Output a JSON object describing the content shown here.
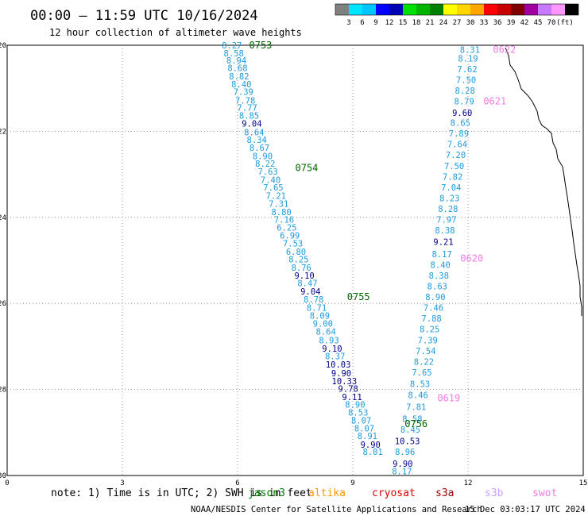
{
  "header": {
    "title": "00:00 – 11:59 UTC 10/16/2024",
    "subtitle": "12 hour collection of altimeter wave heights"
  },
  "colorbar": {
    "colors": [
      "#808080",
      "#00e5ff",
      "#00c8ff",
      "#0000ff",
      "#0000b4",
      "#00e000",
      "#00b400",
      "#008000",
      "#ffff00",
      "#ffd700",
      "#ffa500",
      "#ff0000",
      "#c80000",
      "#800000",
      "#a000a0",
      "#c878ff",
      "#ff96ff",
      "#000000"
    ],
    "labels": [
      "3",
      "6",
      "9",
      "12",
      "15",
      "18",
      "21",
      "24",
      "27",
      "30",
      "33",
      "36",
      "39",
      "42",
      "45",
      "70",
      "(ft)"
    ]
  },
  "colors": {
    "light_blue": "#1e9bdc",
    "dark_blue": "#00008b",
    "jason_green": "#006400",
    "swot_pink": "#f07ce0",
    "coast": "#000000",
    "grid": "#808080"
  },
  "chart_data": {
    "type": "scatter",
    "xlim": [
      0,
      15
    ],
    "ylim": [
      -30,
      -20
    ],
    "x_ticks": [
      "0",
      "3",
      "6",
      "9",
      "12",
      "15"
    ],
    "y_ticks": [
      "-20",
      "-22",
      "-24",
      "-26",
      "-28",
      "-30"
    ],
    "grid": true,
    "passes": [
      {
        "label": "0753",
        "color": "jason_green",
        "x": 6.3,
        "y": -20.0
      },
      {
        "label": "0754",
        "color": "jason_green",
        "x": 7.5,
        "y": -22.85
      },
      {
        "label": "0755",
        "color": "jason_green",
        "x": 8.85,
        "y": -25.85
      },
      {
        "label": "0756",
        "color": "jason_green",
        "x": 10.35,
        "y": -28.8
      },
      {
        "label": "0622",
        "color": "swot_pink",
        "x": 12.65,
        "y": -20.1
      },
      {
        "label": "0621",
        "color": "swot_pink",
        "x": 12.4,
        "y": -21.3
      },
      {
        "label": "0620",
        "color": "swot_pink",
        "x": 11.8,
        "y": -24.95
      },
      {
        "label": "0619",
        "color": "swot_pink",
        "x": 11.2,
        "y": -28.2
      }
    ],
    "series": [
      {
        "name": "jason3",
        "points": [
          {
            "x": 5.85,
            "y": -20.0,
            "v": "8.27",
            "c": "light_blue"
          },
          {
            "x": 5.9,
            "y": -20.18,
            "v": "8.58",
            "c": "light_blue"
          },
          {
            "x": 5.97,
            "y": -20.35,
            "v": "8.94",
            "c": "light_blue"
          },
          {
            "x": 6.0,
            "y": -20.53,
            "v": "8.68",
            "c": "light_blue"
          },
          {
            "x": 6.04,
            "y": -20.72,
            "v": "8.82",
            "c": "light_blue"
          },
          {
            "x": 6.1,
            "y": -20.9,
            "v": "8.40",
            "c": "light_blue"
          },
          {
            "x": 6.15,
            "y": -21.08,
            "v": "7.39",
            "c": "light_blue"
          },
          {
            "x": 6.2,
            "y": -21.28,
            "v": "7.78",
            "c": "light_blue"
          },
          {
            "x": 6.25,
            "y": -21.45,
            "v": "7.77",
            "c": "light_blue"
          },
          {
            "x": 6.3,
            "y": -21.63,
            "v": "8.85",
            "c": "light_blue"
          },
          {
            "x": 6.37,
            "y": -21.82,
            "v": "9.04",
            "c": "dark_blue"
          },
          {
            "x": 6.43,
            "y": -22.02,
            "v": "8.64",
            "c": "light_blue"
          },
          {
            "x": 6.5,
            "y": -22.2,
            "v": "8.34",
            "c": "light_blue"
          },
          {
            "x": 6.57,
            "y": -22.38,
            "v": "8.67",
            "c": "light_blue"
          },
          {
            "x": 6.65,
            "y": -22.57,
            "v": "8.90",
            "c": "light_blue"
          },
          {
            "x": 6.72,
            "y": -22.75,
            "v": "8.22",
            "c": "light_blue"
          },
          {
            "x": 6.79,
            "y": -22.93,
            "v": "7.63",
            "c": "light_blue"
          },
          {
            "x": 6.86,
            "y": -23.13,
            "v": "7.40",
            "c": "light_blue"
          },
          {
            "x": 6.93,
            "y": -23.3,
            "v": "7.65",
            "c": "light_blue"
          },
          {
            "x": 7.0,
            "y": -23.5,
            "v": "7.21",
            "c": "light_blue"
          },
          {
            "x": 7.07,
            "y": -23.68,
            "v": "7.31",
            "c": "light_blue"
          },
          {
            "x": 7.14,
            "y": -23.87,
            "v": "8.80",
            "c": "light_blue"
          },
          {
            "x": 7.21,
            "y": -24.05,
            "v": "7.16",
            "c": "light_blue"
          },
          {
            "x": 7.28,
            "y": -24.23,
            "v": "6.25",
            "c": "light_blue"
          },
          {
            "x": 7.36,
            "y": -24.42,
            "v": "6.99",
            "c": "light_blue"
          },
          {
            "x": 7.44,
            "y": -24.6,
            "v": "7.53",
            "c": "light_blue"
          },
          {
            "x": 7.52,
            "y": -24.8,
            "v": "6.80",
            "c": "light_blue"
          },
          {
            "x": 7.59,
            "y": -24.97,
            "v": "8.25",
            "c": "light_blue"
          },
          {
            "x": 7.66,
            "y": -25.17,
            "v": "8.76",
            "c": "light_blue"
          },
          {
            "x": 7.74,
            "y": -25.35,
            "v": "9.10",
            "c": "dark_blue"
          },
          {
            "x": 7.82,
            "y": -25.53,
            "v": "8.47",
            "c": "light_blue"
          },
          {
            "x": 7.9,
            "y": -25.72,
            "v": "9.04",
            "c": "dark_blue"
          },
          {
            "x": 7.98,
            "y": -25.9,
            "v": "8.78",
            "c": "light_blue"
          },
          {
            "x": 8.06,
            "y": -26.1,
            "v": "8.71",
            "c": "light_blue"
          },
          {
            "x": 8.14,
            "y": -26.28,
            "v": "8.09",
            "c": "light_blue"
          },
          {
            "x": 8.22,
            "y": -26.47,
            "v": "9.00",
            "c": "light_blue"
          },
          {
            "x": 8.3,
            "y": -26.65,
            "v": "8.64",
            "c": "light_blue"
          },
          {
            "x": 8.38,
            "y": -26.85,
            "v": "8.93",
            "c": "light_blue"
          },
          {
            "x": 8.46,
            "y": -27.05,
            "v": "9.10",
            "c": "dark_blue"
          },
          {
            "x": 8.54,
            "y": -27.22,
            "v": "8.37",
            "c": "light_blue"
          },
          {
            "x": 8.62,
            "y": -27.42,
            "v": "10.03",
            "c": "dark_blue"
          },
          {
            "x": 8.7,
            "y": -27.62,
            "v": "9.90",
            "c": "dark_blue"
          },
          {
            "x": 8.78,
            "y": -27.8,
            "v": "10.33",
            "c": "dark_blue"
          },
          {
            "x": 8.88,
            "y": -27.98,
            "v": "9.78",
            "c": "dark_blue"
          },
          {
            "x": 8.98,
            "y": -28.17,
            "v": "9.11",
            "c": "dark_blue"
          },
          {
            "x": 9.06,
            "y": -28.35,
            "v": "8.90",
            "c": "light_blue"
          },
          {
            "x": 9.14,
            "y": -28.53,
            "v": "8.53",
            "c": "light_blue"
          },
          {
            "x": 9.22,
            "y": -28.72,
            "v": "8.07",
            "c": "light_blue"
          },
          {
            "x": 9.3,
            "y": -28.9,
            "v": "8.07",
            "c": "light_blue"
          },
          {
            "x": 9.38,
            "y": -29.08,
            "v": "8.91",
            "c": "light_blue"
          },
          {
            "x": 9.46,
            "y": -29.28,
            "v": "9.90",
            "c": "dark_blue"
          },
          {
            "x": 9.52,
            "y": -29.45,
            "v": "8.01",
            "c": "light_blue"
          }
        ]
      },
      {
        "name": "swot",
        "points": [
          {
            "x": 12.05,
            "y": -20.1,
            "v": "8.31",
            "c": "light_blue"
          },
          {
            "x": 12.0,
            "y": -20.3,
            "v": "8.19",
            "c": "light_blue"
          },
          {
            "x": 11.98,
            "y": -20.55,
            "v": "7.62",
            "c": "light_blue"
          },
          {
            "x": 11.95,
            "y": -20.8,
            "v": "7.50",
            "c": "light_blue"
          },
          {
            "x": 11.92,
            "y": -21.05,
            "v": "8.28",
            "c": "light_blue"
          },
          {
            "x": 11.9,
            "y": -21.3,
            "v": "8.79",
            "c": "light_blue"
          },
          {
            "x": 11.85,
            "y": -21.57,
            "v": "9.60",
            "c": "dark_blue"
          },
          {
            "x": 11.8,
            "y": -21.8,
            "v": "8.65",
            "c": "light_blue"
          },
          {
            "x": 11.76,
            "y": -22.05,
            "v": "7.89",
            "c": "light_blue"
          },
          {
            "x": 11.72,
            "y": -22.3,
            "v": "7.64",
            "c": "light_blue"
          },
          {
            "x": 11.68,
            "y": -22.55,
            "v": "7.20",
            "c": "light_blue"
          },
          {
            "x": 11.64,
            "y": -22.8,
            "v": "7.50",
            "c": "light_blue"
          },
          {
            "x": 11.6,
            "y": -23.05,
            "v": "7.82",
            "c": "light_blue"
          },
          {
            "x": 11.56,
            "y": -23.3,
            "v": "7.04",
            "c": "light_blue"
          },
          {
            "x": 11.52,
            "y": -23.55,
            "v": "8.23",
            "c": "light_blue"
          },
          {
            "x": 11.48,
            "y": -23.8,
            "v": "8.28",
            "c": "light_blue"
          },
          {
            "x": 11.44,
            "y": -24.05,
            "v": "7.97",
            "c": "light_blue"
          },
          {
            "x": 11.4,
            "y": -24.3,
            "v": "8.38",
            "c": "light_blue"
          },
          {
            "x": 11.36,
            "y": -24.57,
            "v": "9.21",
            "c": "dark_blue"
          },
          {
            "x": 11.32,
            "y": -24.85,
            "v": "8.17",
            "c": "light_blue"
          },
          {
            "x": 11.28,
            "y": -25.1,
            "v": "8.40",
            "c": "light_blue"
          },
          {
            "x": 11.24,
            "y": -25.35,
            "v": "8.38",
            "c": "light_blue"
          },
          {
            "x": 11.2,
            "y": -25.6,
            "v": "8.63",
            "c": "light_blue"
          },
          {
            "x": 11.15,
            "y": -25.85,
            "v": "8.90",
            "c": "light_blue"
          },
          {
            "x": 11.1,
            "y": -26.1,
            "v": "7.46",
            "c": "light_blue"
          },
          {
            "x": 11.05,
            "y": -26.35,
            "v": "7.88",
            "c": "light_blue"
          },
          {
            "x": 11.0,
            "y": -26.6,
            "v": "8.25",
            "c": "light_blue"
          },
          {
            "x": 10.95,
            "y": -26.85,
            "v": "7.39",
            "c": "light_blue"
          },
          {
            "x": 10.9,
            "y": -27.1,
            "v": "7.54",
            "c": "light_blue"
          },
          {
            "x": 10.85,
            "y": -27.35,
            "v": "8.22",
            "c": "light_blue"
          },
          {
            "x": 10.8,
            "y": -27.6,
            "v": "7.65",
            "c": "light_blue"
          },
          {
            "x": 10.75,
            "y": -27.87,
            "v": "8.53",
            "c": "light_blue"
          },
          {
            "x": 10.7,
            "y": -28.13,
            "v": "8.46",
            "c": "light_blue"
          },
          {
            "x": 10.65,
            "y": -28.4,
            "v": "7.81",
            "c": "light_blue"
          },
          {
            "x": 10.55,
            "y": -28.68,
            "v": "8.58",
            "c": "light_blue"
          },
          {
            "x": 10.5,
            "y": -28.93,
            "v": "8.45",
            "c": "light_blue"
          },
          {
            "x": 10.42,
            "y": -29.2,
            "v": "10.53",
            "c": "dark_blue"
          },
          {
            "x": 10.36,
            "y": -29.45,
            "v": "8.96",
            "c": "light_blue"
          },
          {
            "x": 10.3,
            "y": -29.72,
            "v": "9.90",
            "c": "dark_blue"
          },
          {
            "x": 10.28,
            "y": -29.9,
            "v": "8.17",
            "c": "light_blue"
          }
        ]
      }
    ]
  },
  "footer": {
    "note": "note: 1) Time is in UTC; 2) SWH is in feet",
    "satellites": [
      {
        "name": "jason3",
        "color": "#008000"
      },
      {
        "name": "altika",
        "color": "#ff9600"
      },
      {
        "name": "cryosat",
        "color": "#e00000"
      },
      {
        "name": "s3a",
        "color": "#a00000"
      },
      {
        "name": "s3b",
        "color": "#c8a0ff"
      },
      {
        "name": "swot",
        "color": "#f07ce0"
      }
    ],
    "credit": "NOAA/NESDIS Center for Satellite Applications and Research",
    "timestamp": "15 Dec 03:03:17 UTC 2024"
  }
}
